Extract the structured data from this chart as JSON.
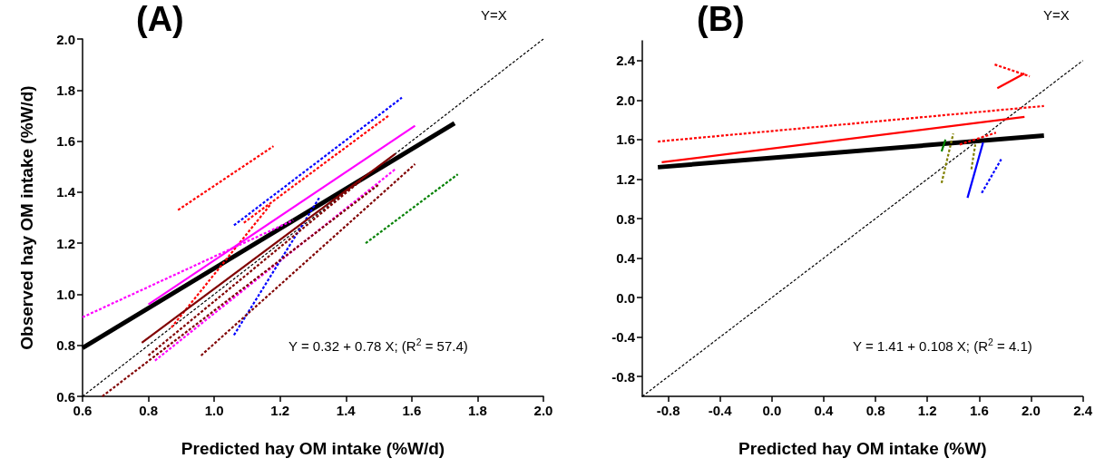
{
  "chart_data": [
    {
      "type": "line",
      "title": "(A)",
      "xlabel": "Predicted hay OM intake (%W/d)",
      "ylabel": "Observed hay OM intake (%W/d)",
      "annotations": [
        "Y=X",
        "Y = 0.32 + 0.78 X;  (R$^{2}$ = 57.4)"
      ],
      "xlim": [
        0.6,
        2.0
      ],
      "ylim": [
        0.6,
        2.0
      ],
      "xticks": [
        0.6,
        0.8,
        {
          "value": 1,
          "label": "1.0"
        },
        1.2,
        1.4,
        1.6,
        1.8,
        {
          "value": 2,
          "label": "2.0"
        }
      ],
      "yticks": [
        0.6,
        0.8,
        {
          "value": 1,
          "label": "1.0"
        },
        1.2,
        1.4,
        1.6,
        1.8,
        {
          "value": 2,
          "label": "2.0"
        }
      ],
      "grid": false,
      "marker": "none",
      "series": [
        {
          "color": "#000000",
          "line_style": "solid",
          "x": [
            0.6,
            1.73
          ],
          "values": [
            0.79,
            1.67
          ]
        },
        {
          "color": "#000000",
          "line_style": "dashed",
          "x": [
            0.6,
            2.0
          ],
          "values": [
            0.6,
            2.0
          ]
        },
        {
          "color": "#ff0000",
          "line_style": "dashed",
          "x": [
            0.89,
            1.18
          ],
          "values": [
            1.33,
            1.58
          ]
        },
        {
          "color": "#0000ff",
          "line_style": "dashed",
          "x": [
            1.06,
            1.57
          ],
          "values": [
            1.27,
            1.77
          ]
        },
        {
          "color": "#ff0000",
          "line_style": "dashed",
          "x": [
            1.09,
            1.53
          ],
          "values": [
            1.28,
            1.7
          ]
        },
        {
          "color": "#ff0000",
          "line_style": "dashed",
          "x": [
            0.87,
            1.17
          ],
          "values": [
            0.87,
            1.35
          ]
        },
        {
          "color": "#ff00ff",
          "line_style": "solid",
          "x": [
            0.8,
            1.61
          ],
          "values": [
            0.96,
            1.66
          ]
        },
        {
          "color": "#ff00ff",
          "line_style": "dashed",
          "x": [
            0.6,
            1.24
          ],
          "values": [
            0.91,
            1.29
          ]
        },
        {
          "color": "#ff00ff",
          "line_style": "dashed",
          "x": [
            0.82,
            1.55
          ],
          "values": [
            0.74,
            1.49
          ]
        },
        {
          "color": "#0000ff",
          "line_style": "dashed",
          "x": [
            1.06,
            1.32
          ],
          "values": [
            0.84,
            1.38
          ]
        },
        {
          "color": "#800000",
          "line_style": "solid",
          "x": [
            0.78,
            1.55
          ],
          "values": [
            0.81,
            1.55
          ]
        },
        {
          "color": "#800000",
          "line_style": "dashed",
          "x": [
            0.66,
            1.5
          ],
          "values": [
            0.6,
            1.43
          ]
        },
        {
          "color": "#800000",
          "line_style": "dashed",
          "x": [
            0.8,
            1.45
          ],
          "values": [
            0.76,
            1.45
          ]
        },
        {
          "color": "#800000",
          "line_style": "dashed",
          "x": [
            0.96,
            1.61
          ],
          "values": [
            0.76,
            1.51
          ]
        },
        {
          "color": "#008000",
          "line_style": "dashed",
          "x": [
            1.46,
            1.74
          ],
          "values": [
            1.2,
            1.47
          ]
        }
      ]
    },
    {
      "type": "line",
      "title": "(B)",
      "xlabel": "Predicted hay OM intake (%W)",
      "annotations": [
        "Y=X",
        "Y = 1.41 + 0.108 X;  (R$^{2}$ = 4.1)"
      ],
      "xlim": [
        -1.0,
        2.4
      ],
      "ylim": [
        -1.0,
        2.6
      ],
      "xticks": [
        -0.8,
        -0.4,
        {
          "value": 0,
          "label": "0.0"
        },
        0.4,
        0.8,
        1.2,
        1.6,
        {
          "value": 2,
          "label": "2.0"
        },
        2.4
      ],
      "yticks": [
        -0.8,
        -0.4,
        {
          "value": 0,
          "label": "0.0"
        },
        0.4,
        0.8,
        1.2,
        1.6,
        {
          "value": 2,
          "label": "2.0"
        },
        2.4
      ],
      "grid": false,
      "marker": "none",
      "series": [
        {
          "color": "#000000",
          "line_style": "solid",
          "x": [
            -0.88,
            2.1
          ],
          "values": [
            1.32,
            1.64
          ]
        },
        {
          "color": "#000000",
          "line_style": "dashed",
          "x": [
            -1.0,
            2.4
          ],
          "values": [
            -1.0,
            2.4
          ]
        },
        {
          "color": "#ff0000",
          "line_style": "solid",
          "x": [
            -0.85,
            1.95
          ],
          "values": [
            1.37,
            1.83
          ]
        },
        {
          "color": "#ff0000",
          "line_style": "dashed",
          "x": [
            -0.88,
            2.1
          ],
          "values": [
            1.58,
            1.94
          ]
        },
        {
          "color": "#ff0000",
          "line_style": "dashed",
          "x": [
            1.72,
            1.99
          ],
          "values": [
            2.36,
            2.24
          ]
        },
        {
          "color": "#ff0000",
          "line_style": "solid",
          "x": [
            1.74,
            1.95
          ],
          "values": [
            2.12,
            2.27
          ]
        },
        {
          "color": "#ff0000",
          "line_style": "dashed",
          "x": [
            1.45,
            1.73
          ],
          "values": [
            1.55,
            1.67
          ]
        },
        {
          "color": "#008000",
          "line_style": "solid",
          "x": [
            1.31,
            1.34
          ],
          "values": [
            1.48,
            1.6
          ]
        },
        {
          "color": "#808000",
          "line_style": "dashed",
          "x": [
            1.31,
            1.4
          ],
          "values": [
            1.16,
            1.66
          ]
        },
        {
          "color": "#808000",
          "line_style": "dashed",
          "x": [
            1.54,
            1.57
          ],
          "values": [
            1.3,
            1.55
          ]
        },
        {
          "color": "#0000ff",
          "line_style": "solid",
          "x": [
            1.51,
            1.63
          ],
          "values": [
            1.01,
            1.57
          ]
        },
        {
          "color": "#0000ff",
          "line_style": "dashed",
          "x": [
            1.62,
            1.77
          ],
          "values": [
            1.06,
            1.4
          ]
        }
      ]
    }
  ]
}
